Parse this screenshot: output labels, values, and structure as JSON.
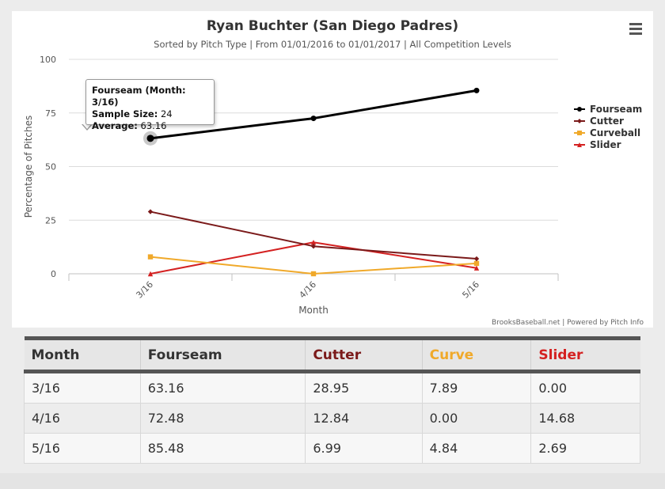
{
  "chart_data": {
    "type": "line",
    "title": "Ryan Buchter (San Diego Padres)",
    "subtitle": "Sorted by Pitch Type | From 01/01/2016 to 01/01/2017 | All Competition Levels",
    "xlabel": "Month",
    "ylabel": "Percentage of Pitches",
    "categories": [
      "3/16",
      "4/16",
      "5/16"
    ],
    "ylim": [
      0,
      100
    ],
    "yticks": [
      0,
      25,
      50,
      75,
      100
    ],
    "grid": true,
    "legend_position": "right",
    "series": [
      {
        "name": "Fourseam",
        "color": "#000000",
        "marker": "circle",
        "values": [
          63.16,
          72.48,
          85.48
        ]
      },
      {
        "name": "Cutter",
        "color": "#7b1a1a",
        "marker": "diamond",
        "values": [
          28.95,
          12.84,
          6.99
        ]
      },
      {
        "name": "Curveball",
        "color": "#f0a92a",
        "marker": "square",
        "values": [
          7.89,
          0.0,
          4.84
        ]
      },
      {
        "name": "Slider",
        "color": "#d42121",
        "marker": "triangle",
        "values": [
          0.0,
          14.68,
          2.69
        ]
      }
    ],
    "credit": "BrooksBaseball.net | Powered by Pitch Info",
    "tooltip": {
      "title": "Fourseam (Month: 3/16)",
      "sample_label": "Sample Size:",
      "sample_value": "24",
      "average_label": "Average:",
      "average_value": "63.16"
    }
  },
  "menu_icon": "hamburger-menu-icon",
  "table": {
    "headers": [
      {
        "label": "Month",
        "color": "#333333"
      },
      {
        "label": "Fourseam",
        "color": "#333333"
      },
      {
        "label": "Cutter",
        "color": "#7b1a1a"
      },
      {
        "label": "Curve",
        "color": "#f0a92a"
      },
      {
        "label": "Slider",
        "color": "#d42121"
      }
    ],
    "rows": [
      [
        "3/16",
        "63.16",
        "28.95",
        "7.89",
        "0.00"
      ],
      [
        "4/16",
        "72.48",
        "12.84",
        "0.00",
        "14.68"
      ],
      [
        "5/16",
        "85.48",
        "6.99",
        "4.84",
        "2.69"
      ]
    ]
  }
}
